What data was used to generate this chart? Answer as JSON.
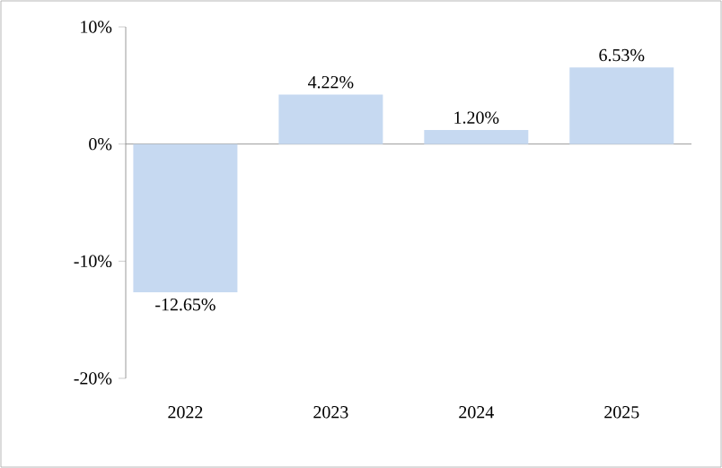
{
  "chart_data": {
    "type": "bar",
    "categories": [
      "2022",
      "2023",
      "2024",
      "2025"
    ],
    "values": [
      -12.65,
      4.22,
      1.2,
      6.53
    ],
    "value_labels": [
      "-12.65%",
      "4.22%",
      "1.20%",
      "6.53%"
    ],
    "color": "#c6d9f1",
    "ylim": [
      -20,
      10
    ],
    "yticks": [
      {
        "value": -20,
        "label": "-20%"
      },
      {
        "value": -10,
        "label": "-10%"
      },
      {
        "value": 0,
        "label": "0%"
      },
      {
        "value": 10,
        "label": "10%"
      }
    ]
  }
}
